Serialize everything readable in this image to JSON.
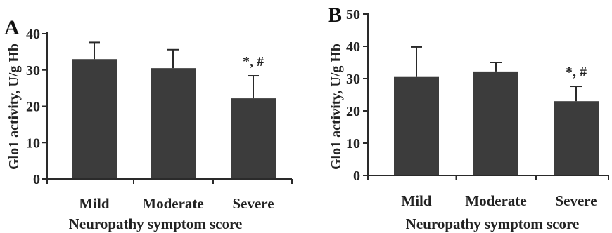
{
  "chart_data": [
    {
      "panel_label": "A",
      "type": "bar",
      "categories": [
        "Mild",
        "Moderate",
        "Severe"
      ],
      "values": [
        33,
        30.5,
        22.2
      ],
      "error_upper": [
        37.6,
        35.6,
        28.4
      ],
      "annotations": [
        "",
        "",
        "*, #"
      ],
      "xlabel": "Neuropathy symptom score",
      "ylabel": "Glo1 activity, U/g Hb",
      "ylim": [
        0,
        40
      ],
      "yticks": [
        0,
        10,
        20,
        30,
        40
      ],
      "bar_color": "#3c3c3c",
      "grid": false,
      "legend": "none"
    },
    {
      "panel_label": "B",
      "type": "bar",
      "categories": [
        "Mild",
        "Moderate",
        "Severe"
      ],
      "values": [
        30.5,
        32.2,
        23
      ],
      "error_upper": [
        39.8,
        35,
        27.6
      ],
      "annotations": [
        "",
        "",
        "*, #"
      ],
      "xlabel": "Neuropathy symptom score",
      "ylabel": "Glo1 activity, U/g Hb",
      "ylim": [
        0,
        50
      ],
      "yticks": [
        0,
        10,
        20,
        30,
        40,
        50
      ],
      "bar_color": "#3c3c3c",
      "grid": false,
      "legend": "none"
    }
  ]
}
